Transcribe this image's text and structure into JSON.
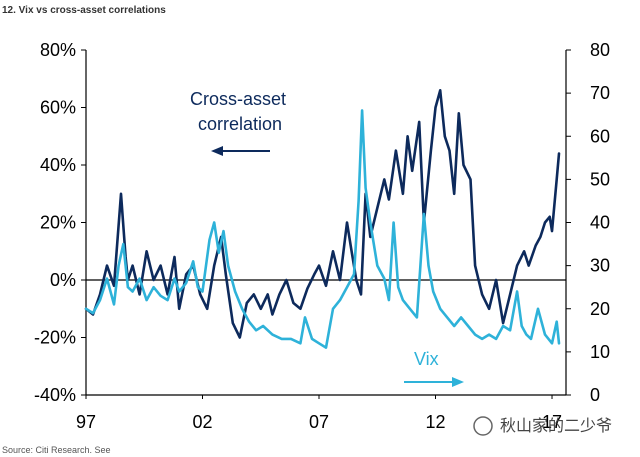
{
  "chart_data": {
    "type": "line",
    "title": "12. Vix vs cross-asset correlations",
    "source": "Source: Citi Research. See",
    "x_ticks": [
      "97",
      "02",
      "07",
      "12",
      "17"
    ],
    "xlim": [
      1997,
      2017.6
    ],
    "y_left": {
      "ticks": [
        "80%",
        "60%",
        "40%",
        "20%",
        "0%",
        "-20%",
        "-40%"
      ],
      "ylim": [
        -0.4,
        0.8
      ]
    },
    "y_right": {
      "ticks": [
        "80",
        "70",
        "60",
        "50",
        "40",
        "30",
        "20",
        "10",
        "0"
      ],
      "ylim": [
        0,
        80
      ]
    },
    "zero_line": 0,
    "annotations": [
      {
        "text_lines": [
          "Cross-asset",
          "correlation"
        ],
        "arrow": "left",
        "color": "#0d2a5c",
        "axis": "left"
      },
      {
        "text_lines": [
          "Vix"
        ],
        "arrow": "right",
        "color": "#2eb2d9",
        "axis": "right"
      }
    ],
    "series": [
      {
        "name": "Cross-asset correlation",
        "axis": "left",
        "color": "#0d2a5c",
        "x": [
          1997.0,
          1997.3,
          1997.6,
          1997.9,
          1998.2,
          1998.5,
          1998.7,
          1998.8,
          1999.0,
          1999.3,
          1999.6,
          1999.9,
          2000.2,
          2000.5,
          2000.8,
          2001.0,
          2001.3,
          2001.6,
          2001.9,
          2002.2,
          2002.5,
          2002.8,
          2003.0,
          2003.3,
          2003.6,
          2003.9,
          2004.2,
          2004.5,
          2004.8,
          2005.0,
          2005.3,
          2005.6,
          2005.9,
          2006.2,
          2006.5,
          2006.8,
          2007.0,
          2007.3,
          2007.6,
          2007.9,
          2008.2,
          2008.4,
          2008.6,
          2008.8,
          2009.0,
          2009.2,
          2009.5,
          2009.8,
          2010.0,
          2010.3,
          2010.6,
          2010.8,
          2011.0,
          2011.3,
          2011.5,
          2011.8,
          2012.0,
          2012.2,
          2012.4,
          2012.6,
          2012.8,
          2013.0,
          2013.2,
          2013.5,
          2013.7,
          2014.0,
          2014.3,
          2014.6,
          2014.9,
          2015.2,
          2015.5,
          2015.8,
          2016.0,
          2016.3,
          2016.5,
          2016.7,
          2016.9,
          2017.0,
          2017.2,
          2017.3
        ],
        "values": [
          -0.1,
          -0.12,
          -0.05,
          0.05,
          -0.02,
          0.3,
          0.08,
          0.0,
          0.05,
          -0.05,
          0.1,
          0.0,
          0.05,
          -0.05,
          0.08,
          -0.1,
          0.02,
          0.05,
          -0.05,
          -0.1,
          0.05,
          0.15,
          0.02,
          -0.15,
          -0.2,
          -0.08,
          -0.05,
          -0.1,
          -0.05,
          -0.12,
          -0.05,
          0.0,
          -0.08,
          -0.1,
          -0.03,
          0.02,
          0.05,
          -0.02,
          0.1,
          0.0,
          0.2,
          0.1,
          0.0,
          -0.05,
          0.3,
          0.15,
          0.25,
          0.35,
          0.28,
          0.45,
          0.3,
          0.5,
          0.38,
          0.55,
          0.2,
          0.45,
          0.6,
          0.66,
          0.5,
          0.45,
          0.3,
          0.58,
          0.4,
          0.35,
          0.05,
          -0.05,
          -0.1,
          0.0,
          -0.15,
          -0.05,
          0.05,
          0.1,
          0.05,
          0.12,
          0.15,
          0.2,
          0.22,
          0.17,
          0.35,
          0.44
        ]
      },
      {
        "name": "Vix",
        "axis": "right",
        "color": "#2eb2d9",
        "x": [
          1997.0,
          1997.3,
          1997.6,
          1997.9,
          1998.2,
          1998.4,
          1998.6,
          1998.8,
          1999.0,
          1999.3,
          1999.6,
          1999.9,
          2000.2,
          2000.5,
          2000.8,
          2001.0,
          2001.3,
          2001.6,
          2001.8,
          2002.0,
          2002.3,
          2002.5,
          2002.7,
          2002.9,
          2003.1,
          2003.4,
          2003.7,
          2004.0,
          2004.3,
          2004.6,
          2005.0,
          2005.4,
          2005.8,
          2006.2,
          2006.4,
          2006.7,
          2007.0,
          2007.3,
          2007.6,
          2007.9,
          2008.2,
          2008.5,
          2008.7,
          2008.85,
          2009.0,
          2009.2,
          2009.5,
          2009.8,
          2010.0,
          2010.2,
          2010.4,
          2010.6,
          2010.9,
          2011.2,
          2011.5,
          2011.7,
          2011.9,
          2012.2,
          2012.5,
          2012.8,
          2013.1,
          2013.4,
          2013.7,
          2014.0,
          2014.3,
          2014.6,
          2014.9,
          2015.2,
          2015.5,
          2015.7,
          2015.9,
          2016.1,
          2016.4,
          2016.7,
          2017.0,
          2017.2,
          2017.3
        ],
        "values": [
          20,
          19,
          22,
          27,
          21,
          30,
          35,
          25,
          24,
          27,
          22,
          25,
          23,
          22,
          27,
          24,
          26,
          31,
          25,
          24,
          36,
          40,
          33,
          38,
          30,
          24,
          20,
          17,
          15,
          16,
          14,
          13,
          13,
          12,
          18,
          13,
          12,
          11,
          20,
          22,
          25,
          28,
          45,
          66,
          48,
          40,
          30,
          27,
          22,
          40,
          25,
          22,
          20,
          18,
          42,
          30,
          24,
          20,
          18,
          16,
          18,
          16,
          14,
          13,
          14,
          13,
          16,
          15,
          24,
          16,
          14,
          13,
          20,
          14,
          12,
          17,
          12
        ]
      }
    ]
  }
}
